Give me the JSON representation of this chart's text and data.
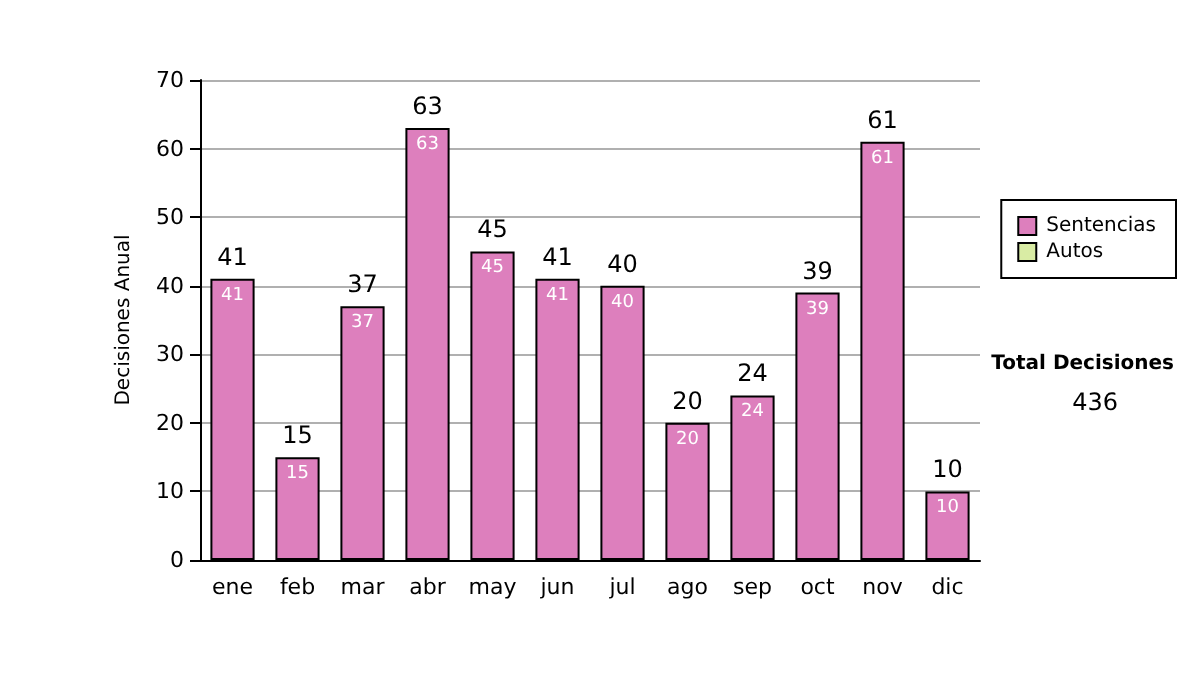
{
  "chart_data": {
    "type": "bar",
    "ylabel": "Decisiones Anual",
    "categories": [
      "ene",
      "feb",
      "mar",
      "abr",
      "may",
      "jun",
      "jul",
      "ago",
      "sep",
      "oct",
      "nov",
      "dic"
    ],
    "series": [
      {
        "name": "Sentencias",
        "color": "#dd7fbd",
        "values": [
          41,
          15,
          37,
          63,
          45,
          41,
          40,
          20,
          24,
          39,
          61,
          10
        ]
      },
      {
        "name": "Autos",
        "color": "#d9eca4",
        "values": [
          null,
          null,
          null,
          null,
          null,
          null,
          null,
          null,
          null,
          null,
          null,
          null
        ]
      }
    ],
    "stacked": true,
    "ylim": [
      0,
      70
    ],
    "yticks": [
      0,
      10,
      20,
      30,
      40,
      50,
      60,
      70
    ],
    "grid": "y",
    "legend": "right",
    "data_labels": true,
    "totals": [
      "41",
      "15",
      "37",
      "63",
      "45",
      "41",
      "40",
      "20",
      "24",
      "39",
      "61",
      "10"
    ],
    "annotations": [
      "Total Decisiones",
      "436"
    ]
  }
}
